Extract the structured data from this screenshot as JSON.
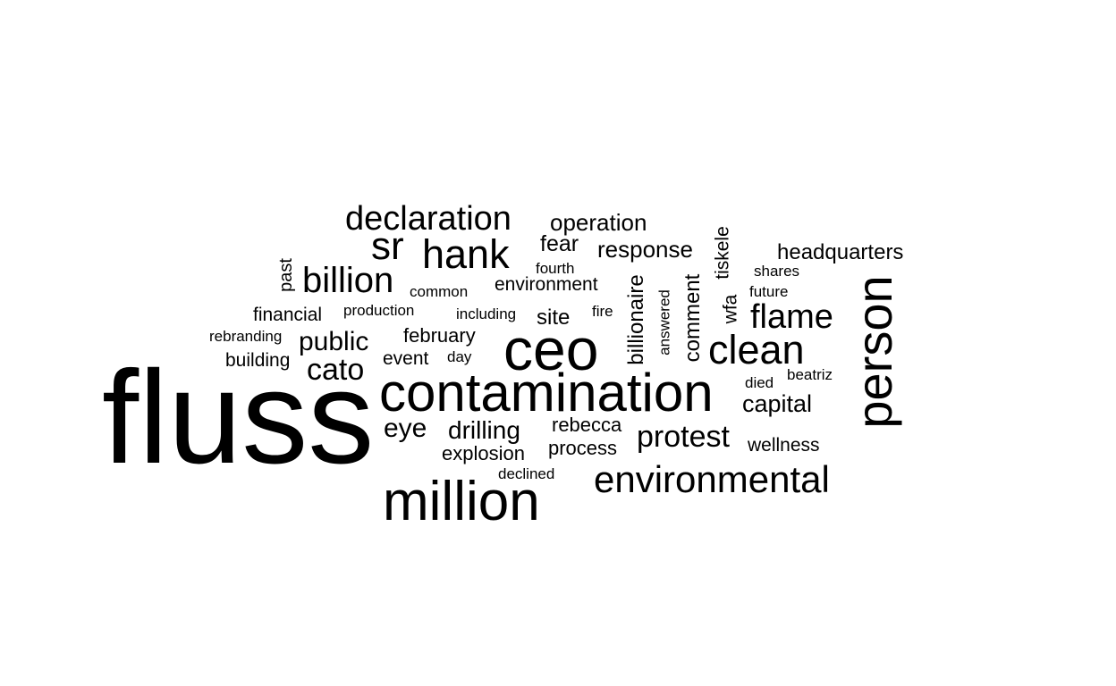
{
  "cloud": {
    "text_color": "#000000",
    "background": "#ffffff",
    "words": [
      "fluss",
      "contamination",
      "million",
      "ceo",
      "person",
      "environmental",
      "declaration",
      "hank",
      "billion",
      "clean",
      "flame",
      "sr",
      "protest",
      "cato",
      "public",
      "response",
      "headquarters",
      "operation",
      "drilling",
      "eye",
      "capital",
      "fear",
      "site",
      "rebecca",
      "february",
      "explosion",
      "process",
      "wellness",
      "financial",
      "environment",
      "event",
      "building",
      "comment",
      "billionaire",
      "tiskele",
      "wfa",
      "past",
      "answered",
      "beatriz",
      "rebranding",
      "common",
      "production",
      "including",
      "fourth",
      "shares",
      "future",
      "fire",
      "day",
      "died",
      "declined"
    ]
  }
}
